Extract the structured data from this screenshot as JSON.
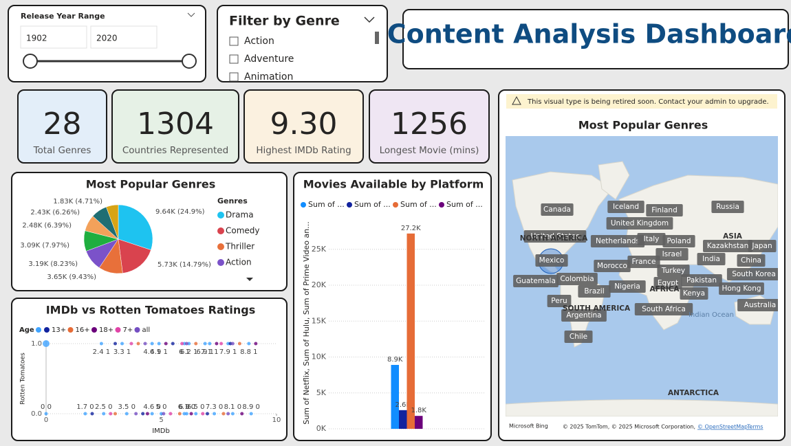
{
  "slicer": {
    "label": "Release Year Range",
    "start": 1902,
    "end": 2020
  },
  "genre_filter": {
    "title": "Filter by Genre",
    "options": [
      "Action",
      "Adventure",
      "Animation"
    ]
  },
  "dashboard_title": "Content Analysis Dashboard",
  "cards": [
    {
      "value": 28,
      "label": "Total Genres"
    },
    {
      "value": 1304,
      "label": "Countries Represented"
    },
    {
      "value": "9.30",
      "label": "Highest IMDb Rating"
    },
    {
      "value": 1256,
      "label": "Longest Movie (mins)"
    }
  ],
  "chart_data": [
    {
      "type": "pie",
      "title": "Most Popular Genres",
      "legend_title": "Genres",
      "categories": [
        "Drama",
        "Comedy",
        "Thriller",
        "Action",
        null,
        null,
        null,
        null
      ],
      "values": [
        9640,
        5730,
        3650,
        3190,
        3090,
        2480,
        2430,
        1830
      ],
      "value_labels": [
        "9.64K (24.9%)",
        "5.73K (14.79%)",
        "3.65K (9.43%)",
        "3.19K (8.23%)",
        "3.09K (7.97%)",
        "2.48K (6.39%)",
        "2.43K (6.26%)",
        "1.83K (4.71%)"
      ],
      "colors": [
        "#1ec3f0",
        "#d9434e",
        "#e8703a",
        "#7b52c9",
        "#1fae3f",
        "#f3a15a",
        "#1f6e73",
        "#d8a415"
      ]
    },
    {
      "type": "scatter",
      "title": "IMDb vs Rotten Tomatoes Ratings",
      "legend_title": "Age",
      "x_label": "IMDb",
      "y_label": "Rotten Tomatoes",
      "xlim": [
        0,
        10
      ],
      "xticks": [
        0,
        5,
        10
      ],
      "ylim": [
        0,
        1
      ],
      "yticks": [
        {
          "value": 0,
          "label": "0.0"
        },
        {
          "value": 1,
          "label": "1.0"
        }
      ],
      "series": [
        {
          "name": null,
          "color": "#41a4ff",
          "x": [
            0,
            2.4,
            3.3,
            4.6,
            4.9,
            6,
            6.2,
            6.9,
            7.1,
            7.9,
            8.8,
            0,
            1.7,
            2.5,
            3.5,
            4.6,
            5,
            6,
            6.1,
            6.5,
            7.3,
            8.1,
            8.9
          ],
          "values": [
            1,
            1,
            1,
            1,
            1,
            1,
            1,
            1,
            1,
            1,
            1,
            0,
            0,
            0,
            0,
            0,
            0,
            0,
            0,
            0,
            0,
            0,
            0
          ],
          "value_labels": [
            null,
            "2.4 1",
            "3.3 1",
            "4.6 1",
            "4.9 1",
            "6 1",
            "6.2 1",
            "6.9 1",
            "7.1 1",
            "7.9 1",
            "8.8 1",
            "0 0",
            "1.7 0",
            "2.5 0",
            "3.5 0",
            "4.6 0",
            "5 0",
            "6 0",
            "6.1 0",
            "6.5 0",
            "7.3 0",
            "8.1 0",
            "8.9 0"
          ]
        },
        {
          "name": "13+",
          "color": "#12239e",
          "x": [
            3,
            5.5,
            8,
            2,
            4.2,
            7
          ],
          "values": [
            1,
            1,
            1,
            0,
            0,
            0
          ]
        },
        {
          "name": "16+",
          "color": "#e66c37",
          "x": [
            4,
            6.5,
            8.4,
            3,
            5.8,
            7.7
          ],
          "values": [
            1,
            1,
            1,
            0,
            0,
            0
          ]
        },
        {
          "name": "18+",
          "color": "#6b007b",
          "x": [
            5.2,
            7.4,
            9.1,
            4.4,
            6.3,
            8.5
          ],
          "values": [
            1,
            1,
            1,
            0,
            0,
            0
          ]
        },
        {
          "name": "7+",
          "color": "#e044a7",
          "x": [
            3.7,
            5.9,
            7.6,
            2.8,
            5.4,
            6.8
          ],
          "values": [
            1,
            1,
            1,
            0,
            0,
            0
          ]
        },
        {
          "name": "all",
          "color": "#744ec2",
          "x": [
            4.3,
            6.1,
            8.1,
            3.9,
            5.1,
            7.9
          ],
          "values": [
            1,
            1,
            1,
            0,
            0,
            0
          ]
        }
      ]
    },
    {
      "type": "bar",
      "title": "Movies Available by Platform",
      "y_label": "Sum of Netflix, Sum of Hulu, Sum of Prime Video an...",
      "categories": [
        null
      ],
      "ylim": [
        0,
        29000
      ],
      "yticks": [
        {
          "value": 0,
          "label": "0K"
        },
        {
          "value": 5000,
          "label": "5K"
        },
        {
          "value": 10000,
          "label": "10K"
        },
        {
          "value": 15000,
          "label": "15K"
        },
        {
          "value": 20000,
          "label": "20K"
        },
        {
          "value": 25000,
          "label": "25K"
        }
      ],
      "series": [
        {
          "name": "Sum of ...",
          "color": "#118dff",
          "values": [
            8900
          ],
          "value_labels": [
            "8.9K"
          ]
        },
        {
          "name": "Sum of ...",
          "color": "#12239e",
          "values": [
            2600
          ],
          "value_labels": [
            "2.6K"
          ]
        },
        {
          "name": "Sum of ...",
          "color": "#e66c37",
          "values": [
            27200
          ],
          "value_labels": [
            "27.2K"
          ]
        },
        {
          "name": "Sum of ...",
          "color": "#6b007b",
          "values": [
            1800
          ],
          "value_labels": [
            "1.8K"
          ]
        }
      ]
    }
  ],
  "map_visual": {
    "notice": "This visual type is being retired soon. Contact your admin to upgrade.",
    "title": "Most Popular Genres",
    "places": [
      "Canada",
      "Iceland",
      "Finland",
      "Russia",
      "United Kingdom",
      "United States",
      "Netherlands",
      "Italy",
      "Poland",
      "Kazakhstan",
      "Japan",
      "Mexico",
      "Morocco",
      "France",
      "Israel",
      "India",
      "China",
      "Turkey",
      "Pakistan",
      "South Korea",
      "Guatemala",
      "Colombia",
      "Nigeria",
      "Egypt",
      "Hong Kong",
      "Brazil",
      "Kenya",
      "Peru",
      "South Africa",
      "Australia",
      "Argentina",
      "Chile"
    ],
    "regions": [
      "NORTH AMERICA",
      "ASIA",
      "AFRICA",
      "SOUTH AMERICA",
      "ANTARCTICA"
    ],
    "oceans": [
      "Indian Ocean"
    ],
    "brand": "Microsoft Bing",
    "attribution": "© 2025 TomTom, © 2025 Microsoft Corporation,",
    "osm": "© OpenStreetMap",
    "terms": "Terms"
  }
}
